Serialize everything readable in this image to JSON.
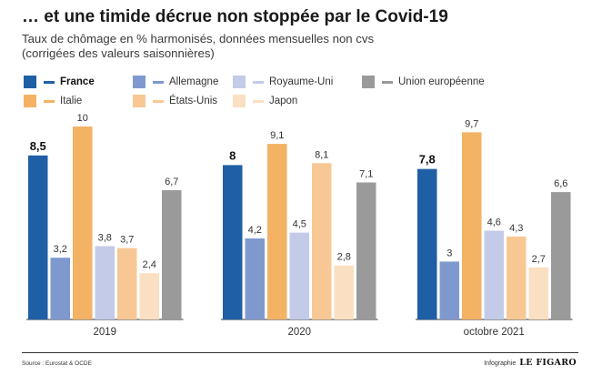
{
  "header": {
    "title": "… et une timide décrue non stoppée par le Covid-19",
    "subtitle_line1": "Taux de chômage en % harmonisés, données mensuelles non cvs",
    "subtitle_line2": "(corrigées des valeurs saisonnières)"
  },
  "legend": [
    {
      "label": "France",
      "color": "#1f5fa6",
      "bold": true
    },
    {
      "label": "Allemagne",
      "color": "#7f99cf",
      "bold": false
    },
    {
      "label": "Royaume-Uni",
      "color": "#c3cbe8",
      "bold": false
    },
    {
      "label": "Union européenne",
      "color": "#9a9a9a",
      "bold": false
    },
    {
      "label": "Italie",
      "color": "#f3b264",
      "bold": false
    },
    {
      "label": "États-Unis",
      "color": "#f8c894",
      "bold": false
    },
    {
      "label": "Japon",
      "color": "#fbdfc2",
      "bold": false
    }
  ],
  "chart_data": {
    "type": "bar",
    "title": "… et une timide décrue non stoppée par le Covid-19",
    "categories": [
      "2019",
      "2020",
      "octobre 2021"
    ],
    "series": [
      {
        "name": "France",
        "color": "#1f5fa6",
        "values": [
          8.5,
          8,
          7.8
        ],
        "labels": [
          "8,5",
          "8",
          "7,8"
        ],
        "bold_labels": true
      },
      {
        "name": "Allemagne",
        "color": "#7f99cf",
        "values": [
          3.2,
          4.2,
          3
        ],
        "labels": [
          "3,2",
          "4,2",
          "3"
        ]
      },
      {
        "name": "Italie",
        "color": "#f3b264",
        "values": [
          10,
          9.1,
          9.7
        ],
        "labels": [
          "10",
          "9,1",
          "9,7"
        ]
      },
      {
        "name": "Royaume-Uni",
        "color": "#c3cbe8",
        "values": [
          3.8,
          4.5,
          4.6
        ],
        "labels": [
          "3,8",
          "4,5",
          "4,6"
        ]
      },
      {
        "name": "États-Unis",
        "color": "#f8c894",
        "values": [
          3.7,
          8.1,
          4.3
        ],
        "labels": [
          "3,7",
          "8,1",
          "4,3"
        ]
      },
      {
        "name": "Japon",
        "color": "#fbdfc2",
        "values": [
          2.4,
          2.8,
          2.7
        ],
        "labels": [
          "2,4",
          "2,8",
          "2,7"
        ]
      },
      {
        "name": "Union européenne",
        "color": "#9a9a9a",
        "values": [
          6.7,
          7.1,
          6.6
        ],
        "labels": [
          "6,7",
          "7,1",
          "6,6"
        ]
      }
    ],
    "ylim": [
      0,
      10
    ]
  },
  "footer": {
    "source": "Source : Eurostat & OCDE",
    "credit_prefix": "Infographie",
    "credit_logo": "LE FIGARO"
  }
}
